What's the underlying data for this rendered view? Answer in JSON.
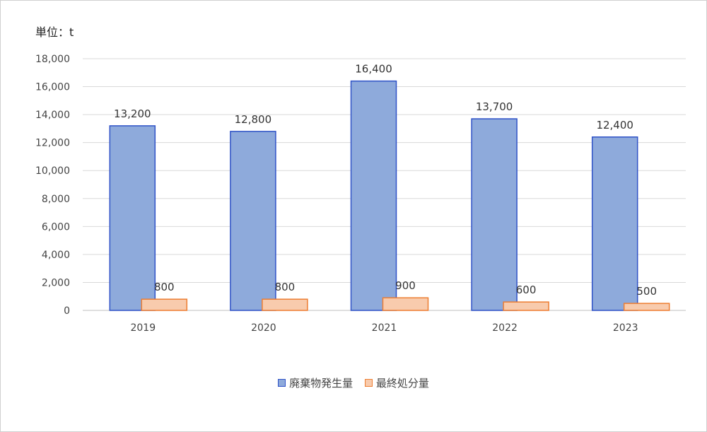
{
  "chart_data": {
    "type": "bar",
    "unit_label": "単位：t",
    "categories": [
      "2019",
      "2020",
      "2021",
      "2022",
      "2023"
    ],
    "series": [
      {
        "name": "廃棄物発生量",
        "values": [
          13200,
          12800,
          16400,
          13700,
          12400
        ],
        "labels": [
          "13,200",
          "12,800",
          "16,400",
          "13,700",
          "12,400"
        ],
        "fill": "#8eaadb",
        "stroke": "#2f52c7"
      },
      {
        "name": "最終処分量",
        "values": [
          800,
          800,
          900,
          600,
          500
        ],
        "labels": [
          "800",
          "800",
          "900",
          "600",
          "500"
        ],
        "fill": "#f8cbad",
        "stroke": "#ed7d31"
      }
    ],
    "ylim": [
      0,
      18000
    ],
    "yticks": [
      0,
      2000,
      4000,
      6000,
      8000,
      10000,
      12000,
      14000,
      16000,
      18000
    ],
    "ytick_labels": [
      "0",
      "2,000",
      "4,000",
      "6,000",
      "8,000",
      "10,000",
      "12,000",
      "14,000",
      "16,000",
      "18,000"
    ],
    "grid": true,
    "legend_position": "bottom"
  }
}
